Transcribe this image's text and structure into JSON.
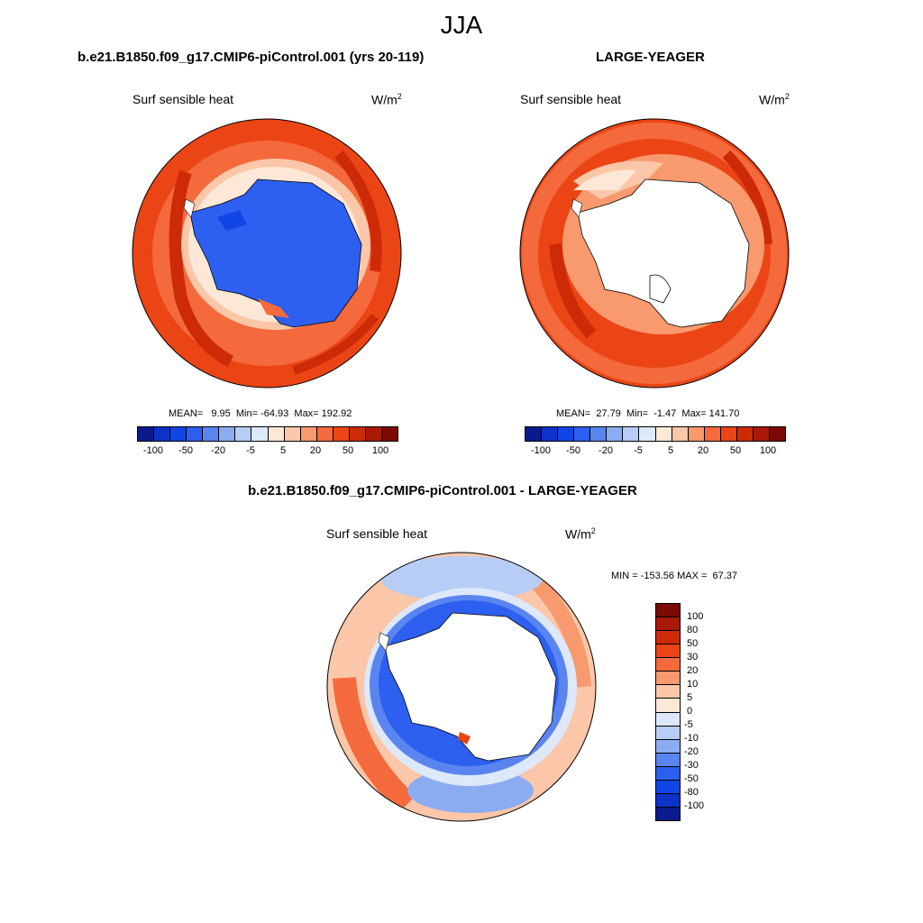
{
  "figure": {
    "season_title": "JJA"
  },
  "panels": {
    "control": {
      "title": "b.e21.B1850.f09_g17.CMIP6-piControl.001 (yrs 20-119)",
      "variable": "Surf sensible heat",
      "units_base": "W/m",
      "units_exp": "2",
      "stats_text": "MEAN=   9.95  Min= -64.93  Max= 192.92",
      "mean": 9.95,
      "min": -64.93,
      "max": 192.92
    },
    "obs": {
      "title": "LARGE-YEAGER",
      "variable": "Surf sensible heat",
      "units_base": "W/m",
      "units_exp": "2",
      "stats_text": "MEAN=  27.79  Min=  -1.47  Max= 141.70",
      "mean": 27.79,
      "min": -1.47,
      "max": 141.7
    },
    "diff": {
      "title": "b.e21.B1850.f09_g17.CMIP6-piControl.001 - LARGE-YEAGER",
      "variable": "Surf sensible heat",
      "units_base": "W/m",
      "units_exp": "2",
      "stats_text": "MIN = -153.56 MAX =  67.37",
      "min": -153.56,
      "max": 67.37
    }
  },
  "colorbar_top": {
    "colors": [
      "#0a1a8c",
      "#0d32c8",
      "#1046e6",
      "#2d5ff0",
      "#5a85f0",
      "#8cacf2",
      "#b8cdf5",
      "#dde8fa",
      "#fde8d8",
      "#fbc7a8",
      "#f8996e",
      "#f46a3c",
      "#eb4515",
      "#cd2a08",
      "#a81a05",
      "#7a0a03"
    ],
    "label_values": [
      "-100",
      "-50",
      "-20",
      "-5",
      "5",
      "20",
      "50",
      "100"
    ]
  },
  "colorbar_diff": {
    "colors_top_to_bottom": [
      "#7a0a03",
      "#a81a05",
      "#cd2a08",
      "#eb4515",
      "#f46a3c",
      "#f8996e",
      "#fbc7a8",
      "#fde8d8",
      "#dde8fa",
      "#b8cdf5",
      "#8cacf2",
      "#5a85f0",
      "#2d5ff0",
      "#1046e6",
      "#0d32c8",
      "#0a1a8c"
    ],
    "label_values": [
      "100",
      "80",
      "50",
      "30",
      "20",
      "10",
      "5",
      "0",
      "-5",
      "-10",
      "-20",
      "-30",
      "-50",
      "-80",
      "-100"
    ]
  }
}
